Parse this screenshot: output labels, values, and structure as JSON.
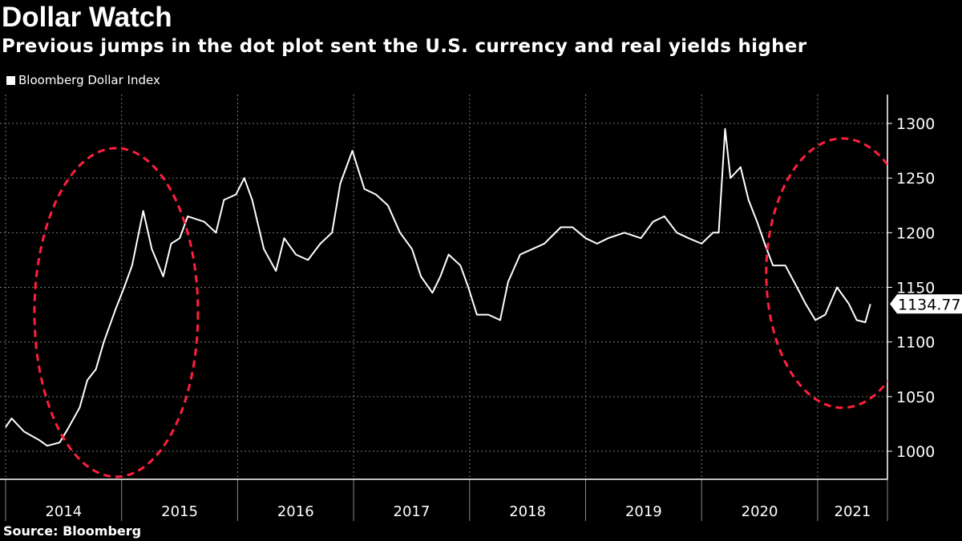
{
  "header": {
    "title": "Dollar Watch",
    "subtitle": "Previous jumps in the dot plot sent the U.S. currency and real yields higher"
  },
  "footer": {
    "source": "Source: Bloomberg"
  },
  "colors": {
    "background": "#000000",
    "line": "#ffffff",
    "annotation": "#ff1f3d",
    "grid": "#666666"
  },
  "chart_data": {
    "type": "line",
    "title": "Dollar Watch",
    "subtitle": "Previous jumps in the dot plot sent the U.S. currency and real yields higher",
    "legend_position": "top-left",
    "grid": true,
    "xlim": [
      "2014-01-01",
      "2021-08-07"
    ],
    "ylim": [
      975,
      1320
    ],
    "y_ticks": [
      1000,
      1050,
      1100,
      1150,
      1200,
      1250,
      1300
    ],
    "x_tick_labels": [
      "2014",
      "2015",
      "2016",
      "2017",
      "2018",
      "2019",
      "2020",
      "2021"
    ],
    "last_value_label": "1134.77",
    "annotations": [
      {
        "type": "dashed-ellipse",
        "color": "#ff1f3d",
        "center": [
          "2014-12-15",
          1127
        ],
        "description": "2014-2015 rally"
      },
      {
        "type": "dashed-ellipse",
        "color": "#ff1f3d",
        "center": [
          "2021-03-20",
          1163
        ],
        "description": "2020-2021"
      }
    ],
    "series": [
      {
        "name": "Bloomberg Dollar Index",
        "points": [
          [
            "2014-01-01",
            1022
          ],
          [
            "2014-01-20",
            1030
          ],
          [
            "2014-02-28",
            1018
          ],
          [
            "2014-04-18",
            1010
          ],
          [
            "2014-05-12",
            1005
          ],
          [
            "2014-06-20",
            1008
          ],
          [
            "2014-07-15",
            1020
          ],
          [
            "2014-08-22",
            1040
          ],
          [
            "2014-09-15",
            1065
          ],
          [
            "2014-10-12",
            1075
          ],
          [
            "2014-11-06",
            1100
          ],
          [
            "2014-12-13",
            1130
          ],
          [
            "2015-01-09",
            1150
          ],
          [
            "2015-02-03",
            1170
          ],
          [
            "2015-03-10",
            1220
          ],
          [
            "2015-04-06",
            1185
          ],
          [
            "2015-05-12",
            1160
          ],
          [
            "2015-06-06",
            1190
          ],
          [
            "2015-07-03",
            1195
          ],
          [
            "2015-07-28",
            1215
          ],
          [
            "2015-09-18",
            1210
          ],
          [
            "2015-10-25",
            1200
          ],
          [
            "2015-11-19",
            1230
          ],
          [
            "2015-12-27",
            1235
          ],
          [
            "2016-01-22",
            1250
          ],
          [
            "2016-02-16",
            1230
          ],
          [
            "2016-03-24",
            1185
          ],
          [
            "2016-05-01",
            1165
          ],
          [
            "2016-05-27",
            1195
          ],
          [
            "2016-07-03",
            1180
          ],
          [
            "2016-08-10",
            1175
          ],
          [
            "2016-09-18",
            1190
          ],
          [
            "2016-10-25",
            1200
          ],
          [
            "2016-11-20",
            1245
          ],
          [
            "2016-12-28",
            1275
          ],
          [
            "2017-02-04",
            1240
          ],
          [
            "2017-03-12",
            1235
          ],
          [
            "2017-04-19",
            1225
          ],
          [
            "2017-05-27",
            1200
          ],
          [
            "2017-07-04",
            1185
          ],
          [
            "2017-08-01",
            1160
          ],
          [
            "2017-09-06",
            1145
          ],
          [
            "2017-10-01",
            1160
          ],
          [
            "2017-10-27",
            1180
          ],
          [
            "2017-12-03",
            1170
          ],
          [
            "2017-12-28",
            1150
          ],
          [
            "2018-01-24",
            1125
          ],
          [
            "2018-03-01",
            1125
          ],
          [
            "2018-04-07",
            1120
          ],
          [
            "2018-05-02",
            1155
          ],
          [
            "2018-06-09",
            1180
          ],
          [
            "2018-07-17",
            1185
          ],
          [
            "2018-08-24",
            1190
          ],
          [
            "2018-10-15",
            1205
          ],
          [
            "2018-11-21",
            1205
          ],
          [
            "2019-01-01",
            1195
          ],
          [
            "2019-02-06",
            1190
          ],
          [
            "2019-03-13",
            1195
          ],
          [
            "2019-05-03",
            1200
          ],
          [
            "2019-06-24",
            1195
          ],
          [
            "2019-08-01",
            1210
          ],
          [
            "2019-09-06",
            1215
          ],
          [
            "2019-10-15",
            1200
          ],
          [
            "2019-11-21",
            1195
          ],
          [
            "2020-01-01",
            1190
          ],
          [
            "2020-02-06",
            1200
          ],
          [
            "2020-02-24",
            1200
          ],
          [
            "2020-03-15",
            1295
          ],
          [
            "2020-04-01",
            1250
          ],
          [
            "2020-05-03",
            1260
          ],
          [
            "2020-05-28",
            1230
          ],
          [
            "2020-06-24",
            1210
          ],
          [
            "2020-07-18",
            1190
          ],
          [
            "2020-08-13",
            1170
          ],
          [
            "2020-09-21",
            1170
          ],
          [
            "2020-10-28",
            1150
          ],
          [
            "2020-11-24",
            1135
          ],
          [
            "2020-12-25",
            1120
          ],
          [
            "2021-01-25",
            1125
          ],
          [
            "2021-03-03",
            1150
          ],
          [
            "2021-04-09",
            1135
          ],
          [
            "2021-05-04",
            1120
          ],
          [
            "2021-05-31",
            1118
          ],
          [
            "2021-06-16",
            1134.77
          ]
        ]
      }
    ]
  }
}
